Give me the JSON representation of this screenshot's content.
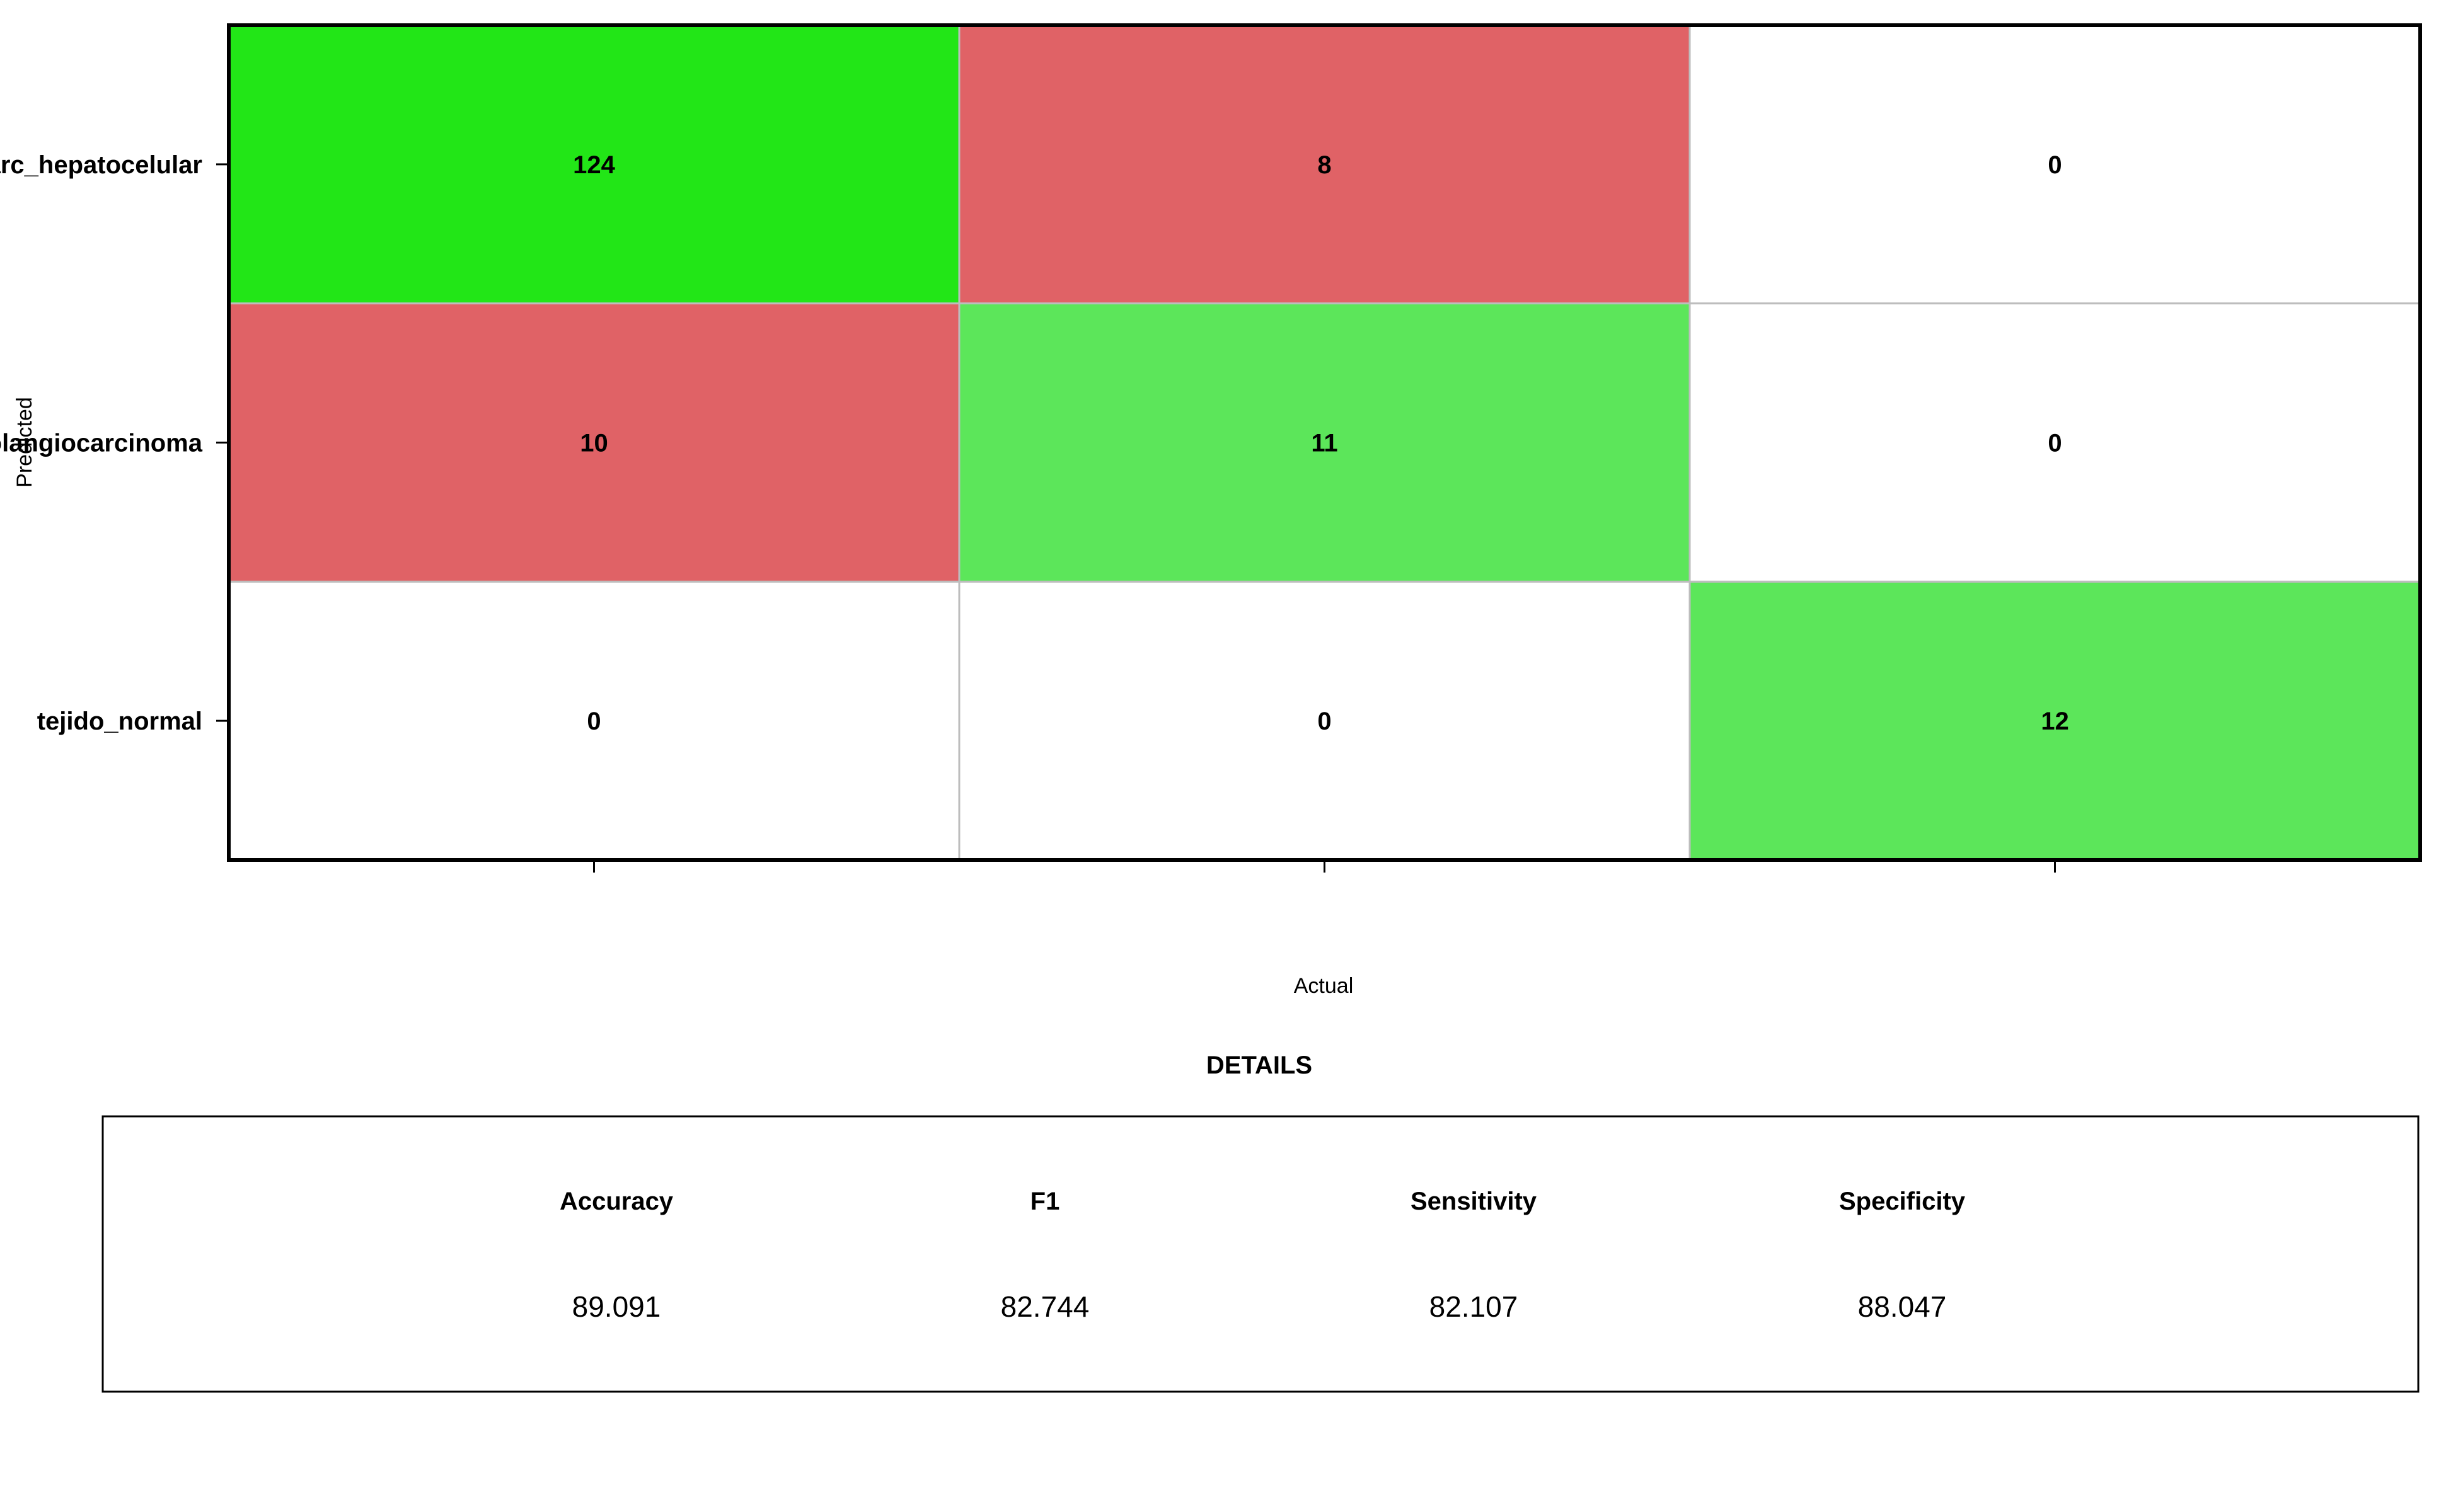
{
  "chart_data": {
    "type": "heatmap",
    "xlabel": "Actual",
    "ylabel": "Predicted",
    "row_labels": [
      "carc_hepatocelular",
      "colangiocarcinoma",
      "tejido_normal"
    ],
    "matrix": [
      [
        124,
        8,
        0
      ],
      [
        10,
        11,
        0
      ],
      [
        0,
        0,
        12
      ]
    ],
    "colors": {
      "correct_strong": "#22e617",
      "correct": "#5ce65a",
      "error": "#e06266",
      "empty": "#ffffff",
      "grid": "#bdbdbd",
      "border": "#000000"
    }
  },
  "details": {
    "title": "DETAILS",
    "metrics": [
      {
        "label": "Accuracy",
        "value": "89.091"
      },
      {
        "label": "F1",
        "value": "82.744"
      },
      {
        "label": "Sensitivity",
        "value": "82.107"
      },
      {
        "label": "Specificity",
        "value": "88.047"
      }
    ]
  }
}
